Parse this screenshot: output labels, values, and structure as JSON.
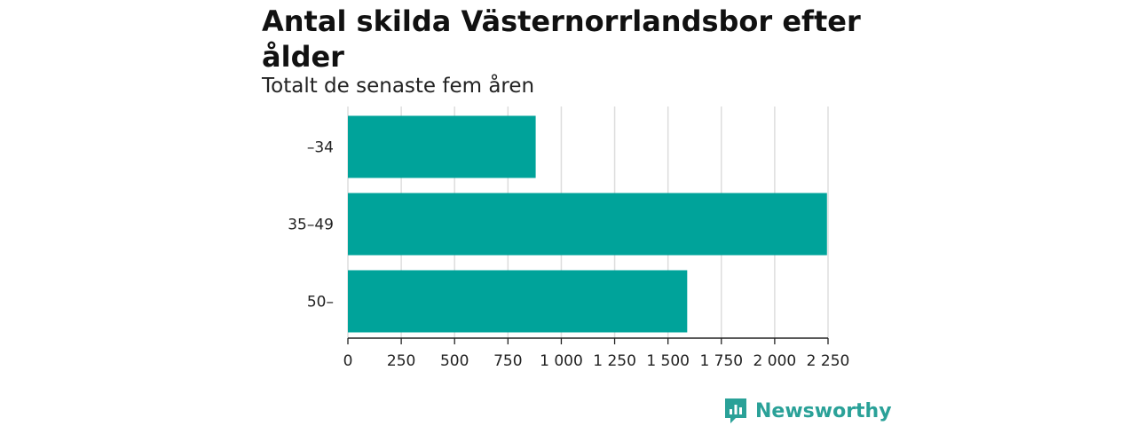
{
  "chart_data": {
    "type": "bar",
    "orientation": "horizontal",
    "title": "Antal skilda Västernorrlandsbor efter ålder",
    "subtitle": "Totalt de senaste fem åren",
    "categories": [
      "–34",
      "35–49",
      "50–"
    ],
    "values": [
      880,
      2245,
      1590
    ],
    "xlabel": "",
    "ylabel": "",
    "xlim": [
      0,
      2250
    ],
    "xticks": [
      0,
      250,
      500,
      750,
      1000,
      1250,
      1500,
      1750,
      2000,
      2250
    ],
    "xtick_labels": [
      "0",
      "250",
      "500",
      "750",
      "1 000",
      "1 250",
      "1 500",
      "1 750",
      "2 000",
      "2 250"
    ],
    "grid": true,
    "bar_color": "#00a39a"
  },
  "brand": {
    "name": "Newsworthy",
    "icon": "newsworthy-logo-icon",
    "color": "#2aa198"
  }
}
